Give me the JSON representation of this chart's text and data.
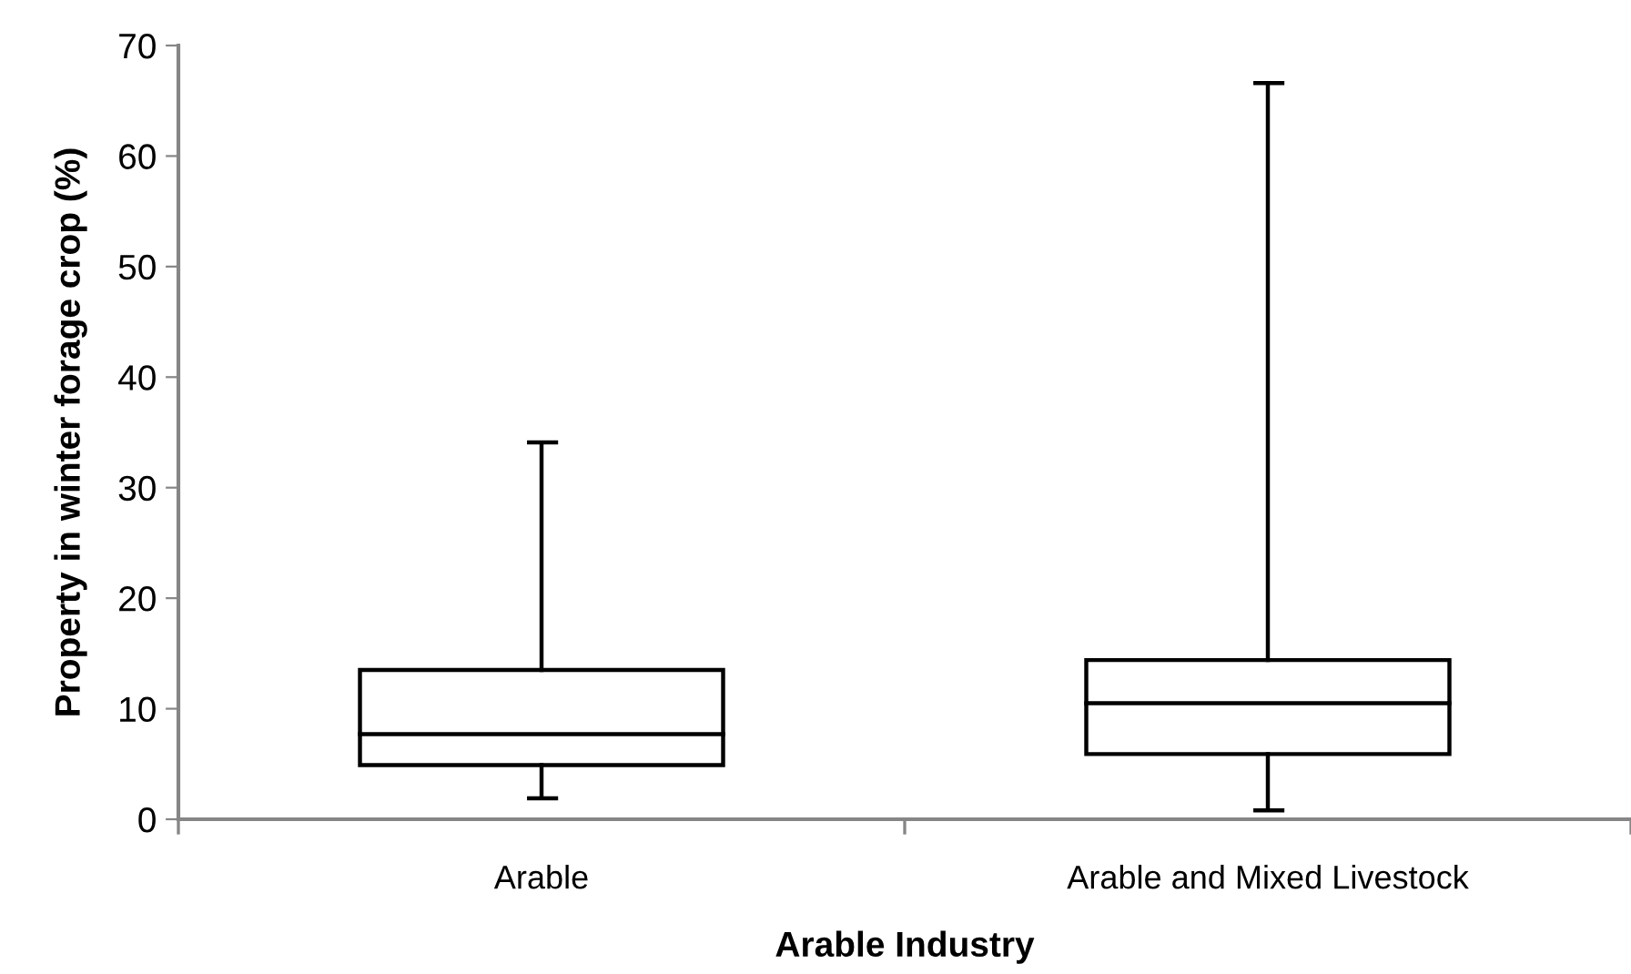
{
  "chart_data": {
    "type": "box",
    "xlabel": "Arable Industry",
    "ylabel": "Property in winter forage crop (%)",
    "categories": [
      "Arable",
      "Arable and Mixed Livestock"
    ],
    "boxes": [
      {
        "low": 1.9,
        "q1": 4.9,
        "median": 7.7,
        "q3": 13.5,
        "high": 34.1
      },
      {
        "low": 0.8,
        "q1": 5.9,
        "median": 10.5,
        "q3": 14.4,
        "high": 66.6
      }
    ],
    "color": "#000000",
    "ylim": [
      0,
      70
    ],
    "yticks": [
      0,
      10,
      20,
      30,
      40,
      50,
      60,
      70
    ],
    "grid": false
  }
}
